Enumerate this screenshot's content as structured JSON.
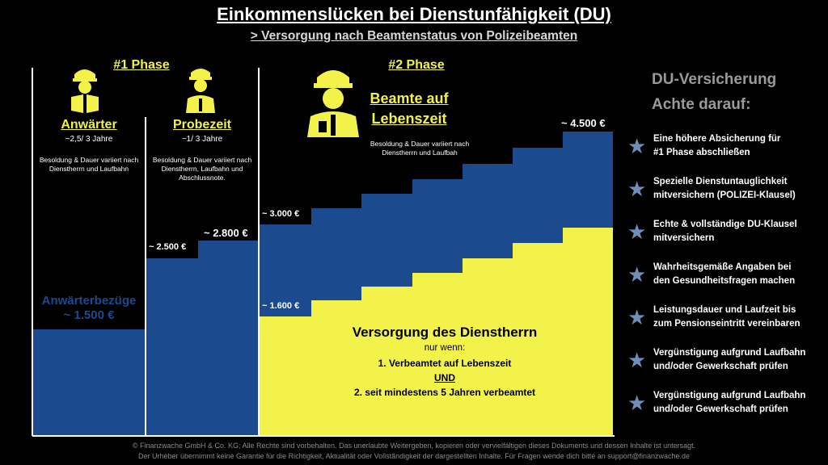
{
  "header": {
    "title": "Einkommenslücken bei Dienstunfähigkeit (DU)",
    "subtitle": "> Versorgung nach Beamtenstatus von Polizeibeamten"
  },
  "phases": {
    "phase1": "#1 Phase",
    "phase2": "#2 Phase"
  },
  "columns": {
    "anwaerter": {
      "title": "Anwärter",
      "duration": "~2,5/ 3 Jahre",
      "note": "Besoldung & Dauer variiert nach Dienstherrn und Laufbahn",
      "pay_label": "Anwärterbezüge",
      "pay_value": "~ 1.500 €"
    },
    "probezeit": {
      "title": "Probezeit",
      "duration": "~1/ 3 Jahre",
      "note": "Besoldung & Dauer variiert nach Dienstherrn, Laufbahn und Abschlussnote.",
      "amount_low": "~ 2.500 €",
      "amount_high": "~ 2.800 €"
    },
    "lebenszeit": {
      "title_line1": "Beamte auf",
      "title_line2": "Lebenszeit",
      "note": "Besoldung & Dauer variiert nach Dienstherrn und Laufbah",
      "amount_start": "~ 3.000 €",
      "amount_end": "~ 4.500 €",
      "dienstherr_start": "~ 1.600 €"
    }
  },
  "versorgung": {
    "title": "Versorgung des Dienstherrn",
    "condition": "nur wenn:",
    "point1": "1. Verbeamtet auf Lebenszeit",
    "und": "UND",
    "point2": "2. seit mindestens 5 Jahren verbeamtet"
  },
  "insurance": {
    "heading1": "DU-Versicherung",
    "heading2": "Achte darauf:",
    "items": [
      {
        "line1": "Eine höhere Absicherung für",
        "line2": "#1 Phase abschließen"
      },
      {
        "line1": "Spezielle Dienstuntauglichkeit",
        "line2": "mitversichern (POLIZEI-Klausel)"
      },
      {
        "line1": "Echte & vollständige DU-Klausel",
        "line2": "mitversichern"
      },
      {
        "line1": "Wahrheitsgemäße Angaben bei",
        "line2": "den Gesundheitsfragen machen"
      },
      {
        "line1": "Leistungsdauer und Laufzeit bis",
        "line2": "zum Pensionseintritt vereinbaren"
      },
      {
        "line1": "Vergünstigung aufgrund Laufbahn",
        "line2": "und/oder Gewerkschaft prüfen"
      },
      {
        "line1": "Vergünstigung aufgrund Laufbahn",
        "line2": "und/oder Gewerkschaft prüfen"
      }
    ]
  },
  "footer": {
    "line1": "© Finanzwache GmbH & Co. KG; Alle Rechte sind vorbehalten. Das unerlaubte Weitergeben, kopieren oder vervielfältigen dieses Dokuments und dessen Inhalte ist untersagt.",
    "line2": "Der Urheber übernimmt keine Garantie für die Richtigkeit, Aktualität oder Vollständigkeit der dargestellten Inhalte. Für Fragen wende dich bitte an support@finanzwache.de"
  },
  "colors": {
    "blue": "#1c4a8e",
    "yellow": "#f2f24a",
    "background": "#000000"
  },
  "chart_data": {
    "type": "area",
    "segments": [
      {
        "phase": "Anwärter",
        "total": 1500,
        "dienstherr": 0
      },
      {
        "phase": "Probezeit",
        "total_start": 2500,
        "total_end": 2800,
        "dienstherr": 0
      },
      {
        "phase": "Beamte auf Lebenszeit",
        "total_start": 3000,
        "total_end": 4500,
        "dienstherr_start": 1600
      }
    ],
    "series": [
      {
        "name": "Versorgung des Dienstherrn",
        "color": "#f2f24a"
      }
    ]
  }
}
